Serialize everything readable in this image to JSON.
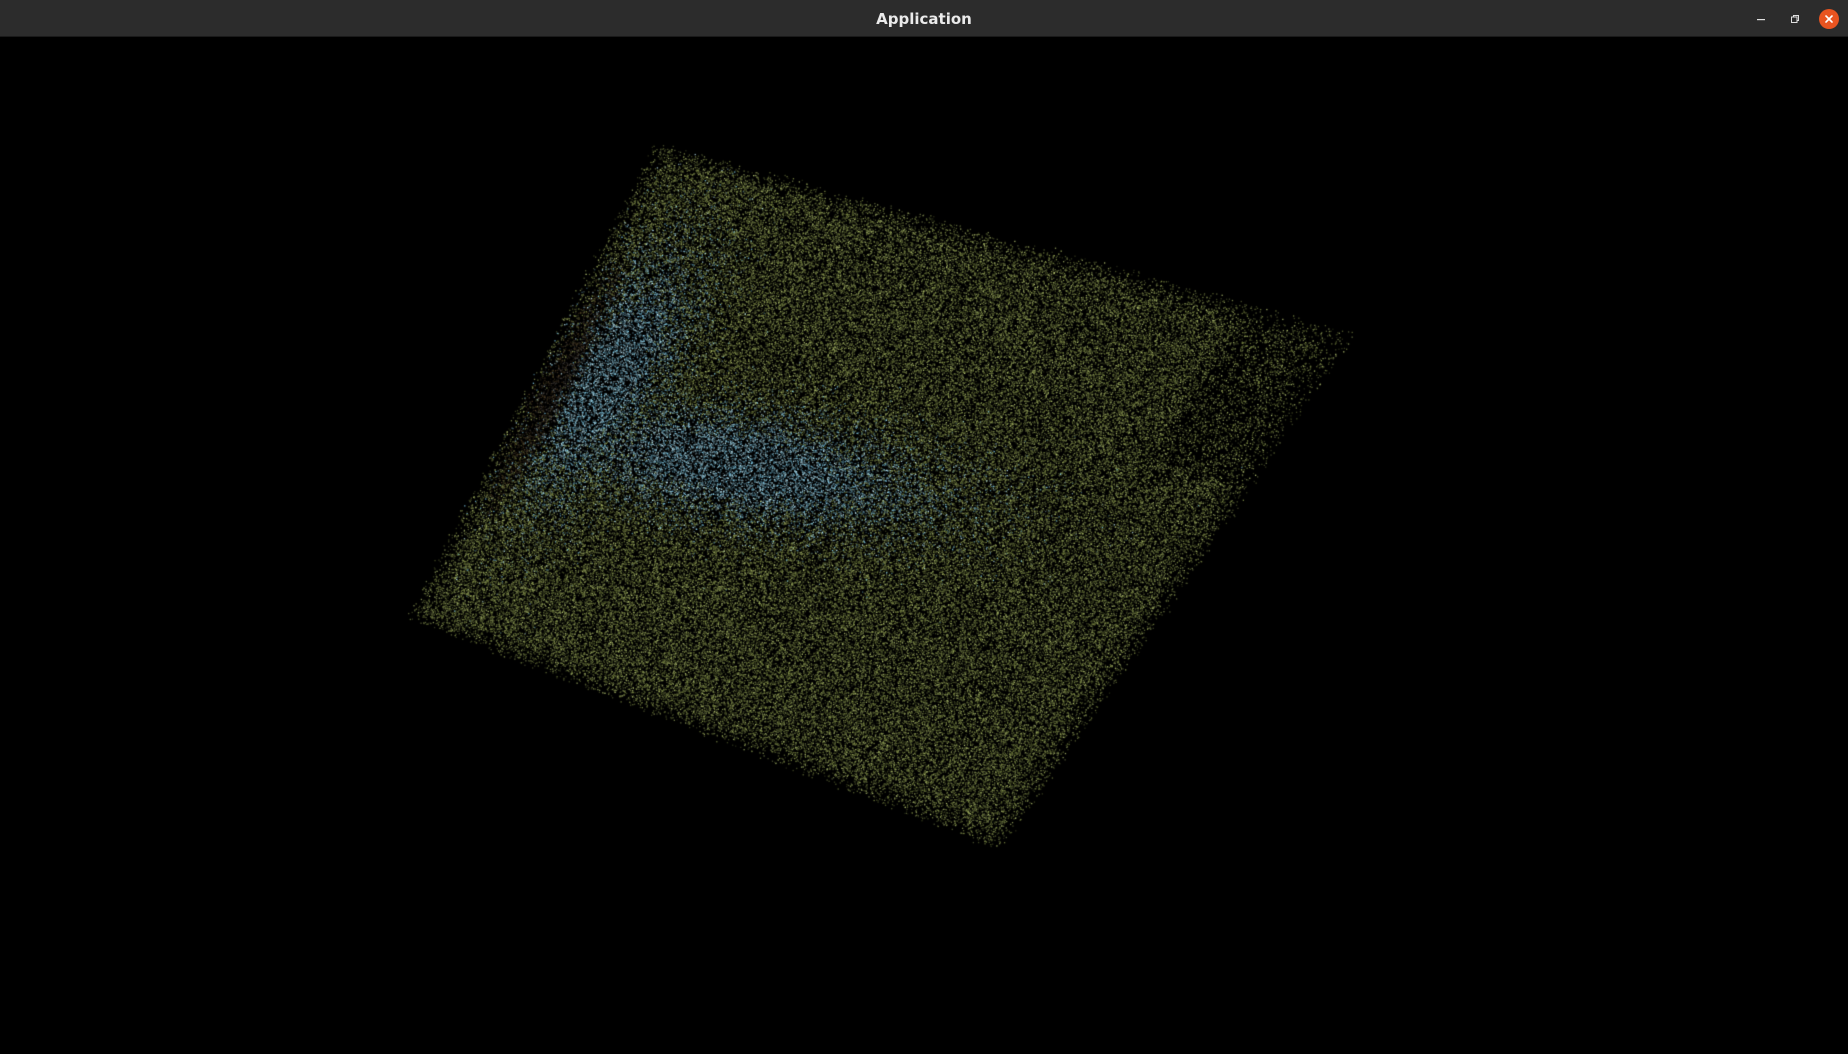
{
  "window": {
    "title": "Application"
  },
  "controls": {
    "minimize_icon": "minimize-icon",
    "maximize_icon": "restore-icon",
    "close_icon": "close-icon",
    "close_color": "#e95420"
  },
  "scene": {
    "background": "#000000",
    "surface_colors": {
      "green": "#7d8a45",
      "light_green": "#a8b66a",
      "blue": "#7cc4e0",
      "light_blue": "#b9e4f2",
      "dark_brown": "#3a2418"
    }
  }
}
